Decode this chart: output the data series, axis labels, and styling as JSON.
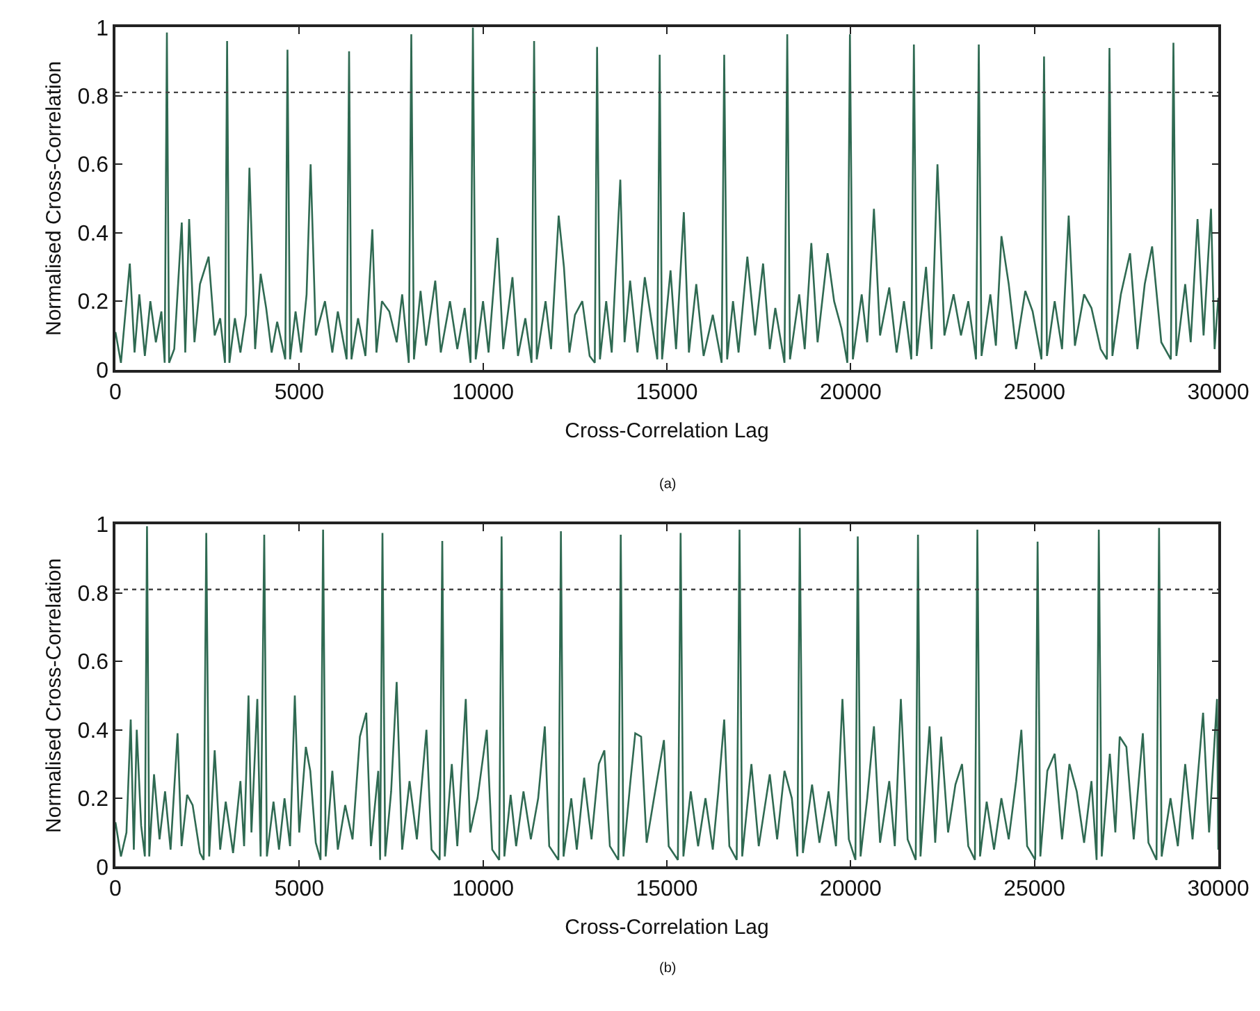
{
  "chart_data": [
    {
      "type": "line",
      "xlabel": "Cross-Correlation Lag",
      "ylabel": "Normalised Cross-Correlation",
      "annotations": [
        "(a)"
      ],
      "color": "#2f6a52",
      "marker": "none",
      "line_style": "solid",
      "xlim": [
        0,
        30000
      ],
      "xticks": [
        0,
        5000,
        10000,
        15000,
        20000,
        25000,
        30000
      ],
      "ylim": [
        0,
        1
      ],
      "yticks": [
        0,
        0.2,
        0.4,
        0.6,
        0.8,
        1
      ],
      "ref_lines": [
        {
          "axis": "y",
          "value": 0.81,
          "color": "#444444",
          "line_style": "dotted"
        }
      ],
      "x": [
        0,
        150,
        391,
        520,
        650,
        800,
        950,
        1100,
        1250,
        1340,
        1400,
        1460,
        1600,
        1804,
        1900,
        2005,
        2150,
        2300,
        2535,
        2700,
        2850,
        2980,
        3038,
        3100,
        3250,
        3400,
        3550,
        3645,
        3800,
        3950,
        4100,
        4250,
        4400,
        4620,
        4680,
        4750,
        4900,
        5050,
        5200,
        5310,
        5450,
        5700,
        5900,
        6050,
        6290,
        6356,
        6420,
        6600,
        6800,
        6988,
        7100,
        7250,
        7450,
        7650,
        7800,
        7980,
        8048,
        8120,
        8300,
        8450,
        8700,
        8850,
        9100,
        9300,
        9500,
        9660,
        9724,
        9800,
        10000,
        10150,
        10393,
        10550,
        10800,
        10950,
        11150,
        11320,
        11389,
        11460,
        11700,
        11850,
        12057,
        12200,
        12350,
        12500,
        12700,
        12900,
        13040,
        13102,
        13180,
        13350,
        13500,
        13734,
        13850,
        14000,
        14200,
        14400,
        14740,
        14805,
        14870,
        15100,
        15250,
        15462,
        15600,
        15800,
        16000,
        16250,
        16490,
        16560,
        16640,
        16800,
        16950,
        17190,
        17400,
        17618,
        17800,
        17950,
        18200,
        18275,
        18350,
        18600,
        18750,
        18930,
        19100,
        19372,
        19550,
        19750,
        19910,
        19980,
        20060,
        20300,
        20450,
        20633,
        20800,
        21050,
        21250,
        21450,
        21650,
        21720,
        21800,
        22050,
        22200,
        22361,
        22550,
        22800,
        23000,
        23200,
        23410,
        23485,
        23560,
        23800,
        23950,
        24102,
        24300,
        24500,
        24750,
        24950,
        25190,
        25260,
        25340,
        25550,
        25750,
        25931,
        26100,
        26350,
        26550,
        26800,
        26970,
        27040,
        27120,
        27350,
        27600,
        27800,
        28000,
        28200,
        28450,
        28710,
        28780,
        28860,
        29100,
        29250,
        29436,
        29600,
        29802,
        29900,
        30000
      ],
      "values": [
        0.11,
        0.02,
        0.31,
        0.05,
        0.22,
        0.04,
        0.2,
        0.08,
        0.17,
        0.02,
        0.985,
        0.02,
        0.06,
        0.43,
        0.05,
        0.44,
        0.08,
        0.25,
        0.33,
        0.1,
        0.15,
        0.02,
        0.96,
        0.02,
        0.15,
        0.05,
        0.16,
        0.59,
        0.06,
        0.28,
        0.18,
        0.05,
        0.14,
        0.03,
        0.935,
        0.03,
        0.17,
        0.05,
        0.22,
        0.6,
        0.1,
        0.2,
        0.05,
        0.17,
        0.03,
        0.93,
        0.03,
        0.15,
        0.04,
        0.41,
        0.05,
        0.2,
        0.17,
        0.08,
        0.22,
        0.02,
        0.98,
        0.03,
        0.23,
        0.07,
        0.26,
        0.05,
        0.2,
        0.06,
        0.18,
        0.02,
        1.0,
        0.03,
        0.2,
        0.05,
        0.385,
        0.06,
        0.27,
        0.04,
        0.15,
        0.02,
        0.96,
        0.03,
        0.2,
        0.06,
        0.45,
        0.3,
        0.05,
        0.16,
        0.2,
        0.04,
        0.02,
        0.943,
        0.03,
        0.2,
        0.05,
        0.555,
        0.08,
        0.26,
        0.05,
        0.27,
        0.03,
        0.92,
        0.03,
        0.29,
        0.06,
        0.46,
        0.05,
        0.25,
        0.04,
        0.16,
        0.02,
        0.92,
        0.03,
        0.2,
        0.05,
        0.33,
        0.1,
        0.31,
        0.06,
        0.18,
        0.02,
        0.98,
        0.03,
        0.22,
        0.06,
        0.37,
        0.08,
        0.34,
        0.2,
        0.12,
        0.02,
        0.98,
        0.03,
        0.22,
        0.08,
        0.47,
        0.1,
        0.24,
        0.05,
        0.2,
        0.03,
        0.95,
        0.04,
        0.3,
        0.06,
        0.6,
        0.1,
        0.22,
        0.1,
        0.2,
        0.03,
        0.95,
        0.04,
        0.22,
        0.07,
        0.39,
        0.25,
        0.06,
        0.23,
        0.17,
        0.03,
        0.915,
        0.04,
        0.2,
        0.06,
        0.45,
        0.07,
        0.22,
        0.18,
        0.06,
        0.03,
        0.94,
        0.04,
        0.22,
        0.34,
        0.06,
        0.25,
        0.36,
        0.08,
        0.03,
        0.955,
        0.04,
        0.25,
        0.08,
        0.44,
        0.1,
        0.47,
        0.06,
        0.21
      ]
    },
    {
      "type": "line",
      "xlabel": "Cross-Correlation Lag",
      "ylabel": "Normalised Cross-Correlation",
      "annotations": [
        "(b)"
      ],
      "color": "#2f6a52",
      "marker": "none",
      "line_style": "solid",
      "xlim": [
        0,
        30000
      ],
      "xticks": [
        0,
        5000,
        10000,
        15000,
        20000,
        25000,
        30000
      ],
      "ylim": [
        0,
        1
      ],
      "yticks": [
        0,
        0.2,
        0.4,
        0.6,
        0.8,
        1
      ],
      "ref_lines": [
        {
          "axis": "y",
          "value": 0.81,
          "color": "#444444",
          "line_style": "dotted"
        }
      ],
      "x": [
        0,
        150,
        300,
        416,
        500,
        580,
        700,
        800,
        859,
        920,
        1050,
        1200,
        1350,
        1500,
        1690,
        1800,
        1950,
        2100,
        2300,
        2400,
        2471,
        2550,
        2700,
        2850,
        3000,
        3200,
        3400,
        3500,
        3620,
        3700,
        3860,
        3950,
        4048,
        4120,
        4300,
        4450,
        4600,
        4750,
        4880,
        5000,
        5180,
        5300,
        5450,
        5580,
        5649,
        5720,
        5900,
        6050,
        6250,
        6450,
        6650,
        6824,
        6950,
        7150,
        7200,
        7264,
        7340,
        7500,
        7650,
        7800,
        8000,
        8200,
        8460,
        8600,
        8820,
        8891,
        8960,
        9150,
        9300,
        9530,
        9650,
        9850,
        10100,
        10250,
        10440,
        10505,
        10580,
        10750,
        10900,
        11100,
        11300,
        11500,
        11680,
        11800,
        12050,
        12118,
        12190,
        12400,
        12550,
        12750,
        12950,
        13150,
        13300,
        13450,
        13680,
        13746,
        13820,
        14000,
        14140,
        14300,
        14450,
        14650,
        14920,
        15050,
        15300,
        15374,
        15450,
        15650,
        15850,
        16050,
        16250,
        16400,
        16560,
        16700,
        16900,
        16977,
        17050,
        17300,
        17500,
        17800,
        18000,
        18200,
        18400,
        18550,
        18616,
        18700,
        18950,
        19150,
        19400,
        19600,
        19776,
        19950,
        20130,
        20193,
        20270,
        20450,
        20633,
        20800,
        21050,
        21200,
        21365,
        21550,
        21770,
        21831,
        21900,
        22147,
        22300,
        22462,
        22650,
        22850,
        23030,
        23200,
        23380,
        23447,
        23520,
        23700,
        23900,
        24100,
        24300,
        24500,
        24643,
        24800,
        25020,
        25085,
        25160,
        25350,
        25550,
        25750,
        25950,
        26150,
        26350,
        26550,
        26690,
        26750,
        26830,
        27050,
        27200,
        27318,
        27500,
        27700,
        27948,
        28100,
        28320,
        28389,
        28460,
        28700,
        28900,
        29100,
        29300,
        29587,
        29750,
        29966,
        30000
      ],
      "values": [
        0.13,
        0.03,
        0.1,
        0.43,
        0.05,
        0.4,
        0.12,
        0.03,
        0.995,
        0.03,
        0.27,
        0.08,
        0.22,
        0.05,
        0.39,
        0.06,
        0.21,
        0.18,
        0.04,
        0.02,
        0.975,
        0.03,
        0.34,
        0.05,
        0.19,
        0.04,
        0.25,
        0.06,
        0.5,
        0.1,
        0.49,
        0.03,
        0.97,
        0.03,
        0.19,
        0.05,
        0.2,
        0.06,
        0.5,
        0.1,
        0.35,
        0.28,
        0.07,
        0.02,
        0.985,
        0.03,
        0.28,
        0.05,
        0.18,
        0.08,
        0.38,
        0.45,
        0.06,
        0.28,
        0.02,
        0.975,
        0.03,
        0.22,
        0.54,
        0.05,
        0.25,
        0.08,
        0.4,
        0.05,
        0.02,
        0.952,
        0.03,
        0.3,
        0.06,
        0.49,
        0.1,
        0.2,
        0.4,
        0.05,
        0.02,
        0.965,
        0.03,
        0.21,
        0.06,
        0.22,
        0.08,
        0.2,
        0.41,
        0.06,
        0.02,
        0.98,
        0.03,
        0.2,
        0.05,
        0.26,
        0.08,
        0.3,
        0.34,
        0.06,
        0.02,
        0.97,
        0.03,
        0.24,
        0.39,
        0.38,
        0.07,
        0.2,
        0.37,
        0.06,
        0.02,
        0.975,
        0.03,
        0.22,
        0.06,
        0.2,
        0.05,
        0.22,
        0.43,
        0.06,
        0.02,
        0.985,
        0.03,
        0.3,
        0.06,
        0.27,
        0.08,
        0.28,
        0.2,
        0.03,
        0.99,
        0.04,
        0.24,
        0.07,
        0.22,
        0.06,
        0.49,
        0.08,
        0.02,
        0.965,
        0.03,
        0.2,
        0.41,
        0.07,
        0.25,
        0.06,
        0.49,
        0.08,
        0.02,
        0.97,
        0.03,
        0.41,
        0.07,
        0.38,
        0.1,
        0.24,
        0.3,
        0.06,
        0.02,
        0.985,
        0.03,
        0.19,
        0.05,
        0.2,
        0.08,
        0.25,
        0.4,
        0.06,
        0.02,
        0.95,
        0.03,
        0.28,
        0.33,
        0.08,
        0.3,
        0.22,
        0.07,
        0.25,
        0.02,
        0.985,
        0.03,
        0.33,
        0.1,
        0.38,
        0.35,
        0.08,
        0.39,
        0.07,
        0.02,
        0.99,
        0.03,
        0.2,
        0.06,
        0.3,
        0.08,
        0.45,
        0.1,
        0.49,
        0.05
      ]
    }
  ]
}
